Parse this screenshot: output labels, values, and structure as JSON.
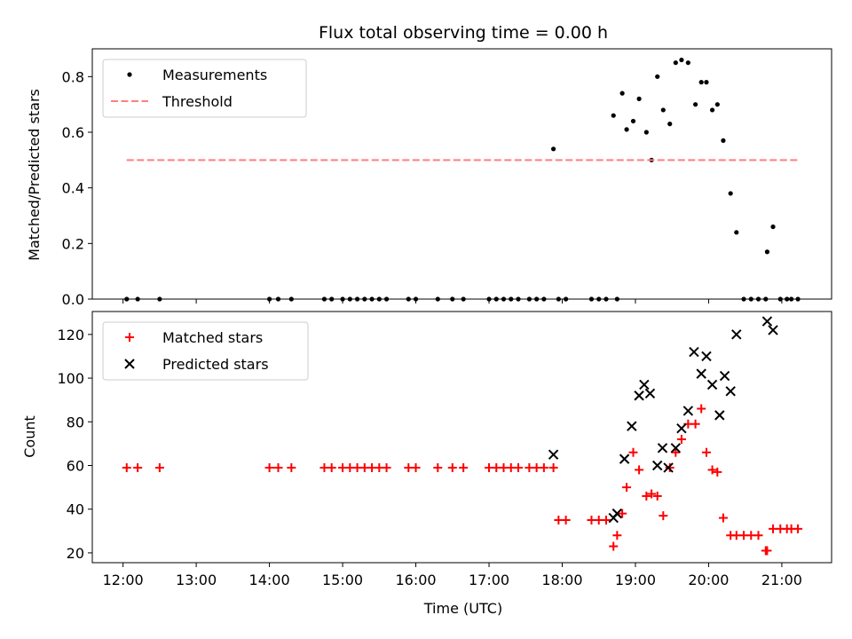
{
  "chart_data": [
    {
      "type": "scatter",
      "title": "Flux total observing time = 0.00 h",
      "ylabel": "Matched/Predicted stars",
      "xlabel": "",
      "xlim": [
        11.58,
        21.68
      ],
      "ylim": [
        0,
        0.9
      ],
      "yticks": [
        0.0,
        0.2,
        0.4,
        0.6,
        0.8
      ],
      "ytick_labels": [
        "0.0",
        "0.2",
        "0.4",
        "0.6",
        "0.8"
      ],
      "xticks": [
        12,
        13,
        14,
        15,
        16,
        17,
        18,
        19,
        20,
        21
      ],
      "legend_position": "upper-left",
      "series": [
        {
          "name": "Measurements",
          "kind": "scatter",
          "marker": "dot",
          "color": "#000000",
          "x": [
            12.05,
            12.2,
            12.5,
            14.0,
            14.12,
            14.3,
            14.75,
            14.85,
            15.0,
            15.1,
            15.2,
            15.3,
            15.4,
            15.5,
            15.6,
            15.9,
            16.0,
            16.3,
            16.5,
            16.65,
            17.0,
            17.1,
            17.2,
            17.3,
            17.4,
            17.55,
            17.65,
            17.75,
            17.88,
            17.95,
            18.05,
            18.4,
            18.5,
            18.6,
            18.7,
            18.75,
            18.82,
            18.88,
            18.97,
            19.05,
            19.15,
            19.22,
            19.3,
            19.38,
            19.47,
            19.55,
            19.63,
            19.72,
            19.82,
            19.9,
            19.97,
            20.05,
            20.12,
            20.2,
            20.3,
            20.38,
            20.48,
            20.58,
            20.68,
            20.78,
            20.8,
            20.88,
            20.98,
            21.07,
            21.13,
            21.22
          ],
          "y": [
            0,
            0,
            0,
            0,
            0,
            0,
            0,
            0,
            0,
            0,
            0,
            0,
            0,
            0,
            0,
            0,
            0,
            0,
            0,
            0,
            0,
            0,
            0,
            0,
            0,
            0,
            0,
            0,
            0.54,
            0,
            0,
            0,
            0,
            0,
            0.66,
            0,
            0.74,
            0.61,
            0.64,
            0.72,
            0.6,
            0.5,
            0.8,
            0.68,
            0.63,
            0.85,
            0.86,
            0.85,
            0.7,
            0.78,
            0.78,
            0.68,
            0.7,
            0.57,
            0.38,
            0.24,
            0,
            0,
            0,
            0,
            0.17,
            0.26,
            0,
            0,
            0,
            0
          ]
        },
        {
          "name": "Threshold",
          "kind": "line",
          "style": "dashed",
          "color": "#ff7f7f",
          "x": [
            12.05,
            21.22
          ],
          "y": [
            0.5,
            0.5
          ]
        }
      ]
    },
    {
      "type": "scatter",
      "title": "",
      "ylabel": "Count",
      "xlabel": "Time (UTC)",
      "xlim": [
        11.58,
        21.68
      ],
      "ylim": [
        15.5,
        130.5
      ],
      "yticks": [
        20,
        40,
        60,
        80,
        100,
        120
      ],
      "ytick_labels": [
        "20",
        "40",
        "60",
        "80",
        "100",
        "120"
      ],
      "xticks": [
        12,
        13,
        14,
        15,
        16,
        17,
        18,
        19,
        20,
        21
      ],
      "xtick_labels": [
        "12:00",
        "13:00",
        "14:00",
        "15:00",
        "16:00",
        "17:00",
        "18:00",
        "19:00",
        "20:00",
        "21:00"
      ],
      "legend_position": "upper-left",
      "series": [
        {
          "name": "Matched stars",
          "kind": "scatter",
          "marker": "plus",
          "color": "#ff0000",
          "x": [
            12.05,
            12.2,
            12.5,
            14.0,
            14.12,
            14.3,
            14.75,
            14.85,
            15.0,
            15.1,
            15.2,
            15.3,
            15.4,
            15.5,
            15.6,
            15.9,
            16.0,
            16.3,
            16.5,
            16.65,
            17.0,
            17.1,
            17.2,
            17.3,
            17.4,
            17.55,
            17.65,
            17.75,
            17.88,
            17.95,
            18.05,
            18.4,
            18.5,
            18.6,
            18.7,
            18.75,
            18.82,
            18.88,
            18.97,
            19.05,
            19.15,
            19.22,
            19.3,
            19.38,
            19.47,
            19.55,
            19.63,
            19.72,
            19.82,
            19.9,
            19.97,
            20.05,
            20.12,
            20.2,
            20.3,
            20.38,
            20.48,
            20.58,
            20.68,
            20.78,
            20.8,
            20.88,
            20.98,
            21.07,
            21.13,
            21.22
          ],
          "y": [
            59,
            59,
            59,
            59,
            59,
            59,
            59,
            59,
            59,
            59,
            59,
            59,
            59,
            59,
            59,
            59,
            59,
            59,
            59,
            59,
            59,
            59,
            59,
            59,
            59,
            59,
            59,
            59,
            59,
            35,
            35,
            35,
            35,
            35,
            23,
            28,
            38,
            50,
            66,
            58,
            46,
            47,
            46,
            37,
            59,
            66,
            72,
            79,
            79,
            86,
            66,
            58,
            57,
            36,
            28,
            28,
            28,
            28,
            28,
            21,
            21,
            31,
            31,
            31,
            31,
            31
          ]
        },
        {
          "name": "Predicted stars",
          "kind": "scatter",
          "marker": "x",
          "color": "#000000",
          "x": [
            17.88,
            18.7,
            18.75,
            18.85,
            18.95,
            19.05,
            19.12,
            19.2,
            19.3,
            19.37,
            19.45,
            19.55,
            19.63,
            19.72,
            19.8,
            19.9,
            19.97,
            20.05,
            20.15,
            20.22,
            20.3,
            20.38,
            20.8,
            20.88
          ],
          "y": [
            65,
            36,
            38,
            63,
            78,
            92,
            97,
            93,
            60,
            68,
            59,
            68,
            77,
            85,
            112,
            102,
            110,
            97,
            83,
            101,
            94,
            120,
            126,
            122
          ]
        }
      ]
    }
  ]
}
